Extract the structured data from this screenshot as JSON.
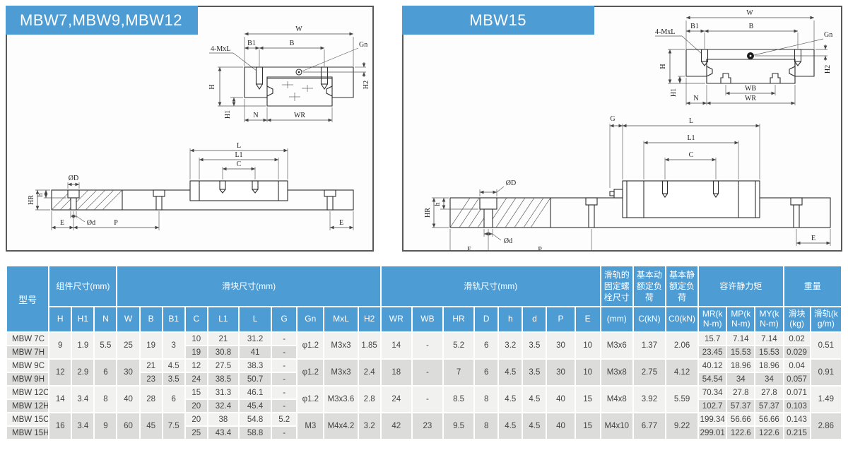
{
  "colors": {
    "header_blue": "#4d9cd4",
    "row_light": "#f1f1ef",
    "row_dark": "#dcdcda",
    "panel_border": "#58595b"
  },
  "panels": [
    {
      "title": "MBW7,MBW9,MBW12"
    },
    {
      "title": "MBW15"
    }
  ],
  "drawings": {
    "labels": {
      "w": "W",
      "b": "B",
      "b1": "B1",
      "gn": "Gn",
      "mxl4": "4-MxL",
      "h": "H",
      "h1": "H1",
      "h2": "H2",
      "n": "N",
      "wr": "WR",
      "wb": "WB",
      "g": "G",
      "l": "L",
      "l1": "L1",
      "c": "C",
      "od_big": "ØD",
      "od_small": "Ød",
      "hr": "HR",
      "h_small": "h",
      "e": "E",
      "p": "P"
    }
  },
  "table": {
    "model_header": "型号",
    "group_headers": [
      {
        "label": "组件尺寸(mm)",
        "span": 3
      },
      {
        "label": "滑块尺寸(mm)",
        "span": 10
      },
      {
        "label": "滑轨尺寸(mm)",
        "span": 8
      },
      {
        "label": "滑轨的固定螺栓尺寸",
        "span": 1
      },
      {
        "label": "基本动额定负荷",
        "span": 1
      },
      {
        "label": "基本静额定负荷",
        "span": 1
      },
      {
        "label": "容许静力矩",
        "span": 3
      },
      {
        "label": "重量",
        "span": 2
      }
    ],
    "sub_headers": [
      "H",
      "H1",
      "N",
      "W",
      "B",
      "B1",
      "C",
      "L1",
      "L",
      "G",
      "Gn",
      "MxL",
      "H2",
      "WR",
      "WB",
      "HR",
      "D",
      "h",
      "d",
      "P",
      "E",
      "(mm)",
      "C(kN)",
      "C0(kN)",
      "MR(kN-m)",
      "MP(kN-m)",
      "MY(kN-m)",
      "滑块(kg)",
      "滑轨(kg/m)"
    ],
    "columns": [
      "H",
      "H1",
      "N",
      "W",
      "B",
      "B1",
      "Cc",
      "L1",
      "L",
      "G",
      "Gn",
      "MxL",
      "H2",
      "WR",
      "WB",
      "HR",
      "D",
      "h",
      "d",
      "P",
      "E",
      "bolt",
      "CkN",
      "C0kN",
      "MR",
      "MP",
      "MY",
      "blockKg",
      "railKg"
    ],
    "groups": [
      {
        "models": [
          "MBW 7C",
          "MBW 7H"
        ],
        "merged": {
          "H": "9",
          "H1": "1.9",
          "N": "5.5",
          "W": "25",
          "B": "19",
          "B1": "3",
          "Gn": "φ1.2",
          "MxL": "M3x3",
          "H2": "1.85",
          "WR": "14",
          "WB": "-",
          "HR": "5.2",
          "D": "6",
          "h": "3.2",
          "d": "3.5",
          "P": "30",
          "E": "10",
          "bolt": "M3x6",
          "CkN": "1.37",
          "C0kN": "2.06",
          "railKg": "0.51"
        },
        "rows": [
          {
            "Cc": "10",
            "L1": "21",
            "L": "31.2",
            "G": "-",
            "MR": "15.7",
            "MP": "7.14",
            "MY": "7.14",
            "blockKg": "0.02"
          },
          {
            "Cc": "19",
            "L1": "30.8",
            "L": "41",
            "G": "-",
            "MR": "23.45",
            "MP": "15.53",
            "MY": "15.53",
            "blockKg": "0.029"
          }
        ]
      },
      {
        "models": [
          "MBW 9C",
          "MBW 9H"
        ],
        "merged": {
          "H": "12",
          "H1": "2.9",
          "N": "6",
          "W": "30",
          "Gn": "φ1.2",
          "MxL": "M3x3",
          "H2": "2.4",
          "WR": "18",
          "WB": "-",
          "HR": "7",
          "D": "6",
          "h": "4.5",
          "d": "3.5",
          "P": "30",
          "E": "10",
          "bolt": "M3x8",
          "CkN": "2.75",
          "C0kN": "4.12",
          "railKg": "0.91"
        },
        "rows": [
          {
            "B": "21",
            "B1": "4.5",
            "Cc": "12",
            "L1": "27.5",
            "L": "38.3",
            "G": "-",
            "MR": "40.12",
            "MP": "18.96",
            "MY": "18.96",
            "blockKg": "0.04"
          },
          {
            "B": "23",
            "B1": "3.5",
            "Cc": "24",
            "L1": "38.5",
            "L": "50.7",
            "G": "-",
            "MR": "54.54",
            "MP": "34",
            "MY": "34",
            "blockKg": "0.057"
          }
        ]
      },
      {
        "models": [
          "MBW 12C",
          "MBW 12H"
        ],
        "merged": {
          "H": "14",
          "H1": "3.4",
          "N": "8",
          "W": "40",
          "B": "28",
          "B1": "6",
          "Gn": "φ1.2",
          "MxL": "M3x3.6",
          "H2": "2.8",
          "WR": "24",
          "WB": "-",
          "HR": "8.5",
          "D": "8",
          "h": "4.5",
          "d": "4.5",
          "P": "40",
          "E": "15",
          "bolt": "M4x8",
          "CkN": "3.92",
          "C0kN": "5.59",
          "railKg": "1.49"
        },
        "rows": [
          {
            "Cc": "15",
            "L1": "31.3",
            "L": "46.1",
            "G": "-",
            "MR": "70.34",
            "MP": "27.8",
            "MY": "27.8",
            "blockKg": "0.071"
          },
          {
            "Cc": "20",
            "L1": "32.4",
            "L": "45.4",
            "G": "-",
            "MR": "102.7",
            "MP": "57.37",
            "MY": "57.37",
            "blockKg": "0.103"
          }
        ]
      },
      {
        "models": [
          "MBW 15C",
          "MBW 15H"
        ],
        "merged": {
          "H": "16",
          "H1": "3.4",
          "N": "9",
          "W": "60",
          "B": "45",
          "B1": "7.5",
          "Gn": "M3",
          "MxL": "M4x4.2",
          "H2": "3.2",
          "WR": "42",
          "WB": "23",
          "HR": "9.5",
          "D": "8",
          "h": "4.5",
          "d": "4.5",
          "P": "40",
          "E": "15",
          "bolt": "M4x10",
          "CkN": "6.77",
          "C0kN": "9.22",
          "railKg": "2.86"
        },
        "rows": [
          {
            "Cc": "20",
            "L1": "38",
            "L": "54.8",
            "G": "5.2",
            "MR": "199.34",
            "MP": "56.66",
            "MY": "56.66",
            "blockKg": "0.143"
          },
          {
            "Cc": "25",
            "L1": "43.4",
            "L": "58.8",
            "G": "-",
            "MR": "299.01",
            "MP": "122.6",
            "MY": "122.6",
            "blockKg": "0.215"
          }
        ]
      }
    ]
  }
}
